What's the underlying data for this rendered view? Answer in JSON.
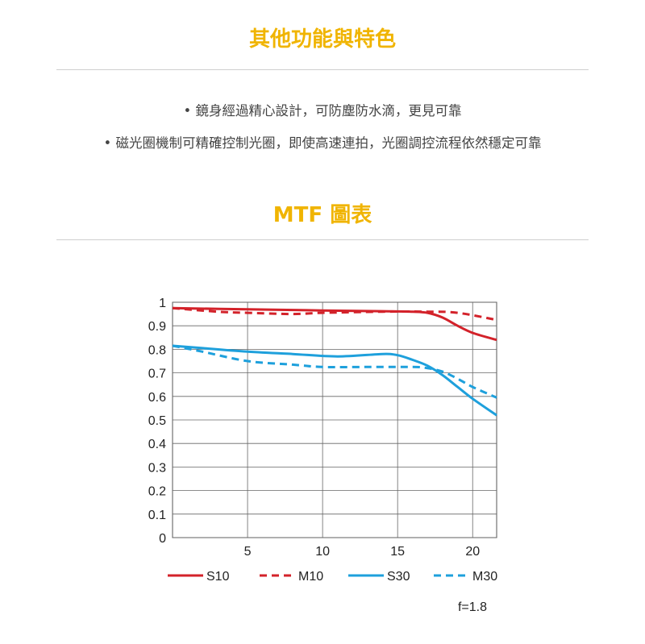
{
  "colors": {
    "accent": "#f0b400",
    "red": "#d3222a",
    "blue": "#1ea0dc"
  },
  "section1": {
    "title": "其他功能與特色",
    "bullets": [
      "鏡身經過精心設計，可防塵防水滴，更見可靠",
      "磁光圈機制可精確控制光圈，即使高速連拍，光圈調控流程依然穩定可靠"
    ],
    "bullet_symbol": "•"
  },
  "section2": {
    "title": "MTF 圖表"
  },
  "chart_data": {
    "type": "line",
    "title": "",
    "xlabel": "",
    "ylabel": "",
    "xlim": [
      0,
      21.6
    ],
    "ylim": [
      0,
      1
    ],
    "grid": true,
    "x_ticks": [
      5,
      10,
      15,
      20
    ],
    "y_ticks": [
      0,
      0.1,
      0.2,
      0.3,
      0.4,
      0.5,
      0.6,
      0.7,
      0.8,
      0.9,
      1
    ],
    "y_tick_labels": [
      "0",
      "0.1",
      "0.2",
      "0.3",
      "0.4",
      "0.5",
      "0.6",
      "0.7",
      "0.8",
      "0.9",
      "1"
    ],
    "legend_position": "bottom",
    "annotation": "f=1.8",
    "series": [
      {
        "name": "S10",
        "color": "#d3222a",
        "style": "solid",
        "x": [
          0,
          5,
          10,
          14,
          16,
          17,
          18,
          19,
          20,
          21.6
        ],
        "y": [
          0.975,
          0.97,
          0.965,
          0.962,
          0.96,
          0.955,
          0.935,
          0.9,
          0.87,
          0.84
        ]
      },
      {
        "name": "M10",
        "color": "#d3222a",
        "style": "dashed",
        "x": [
          0,
          3,
          5,
          8,
          10,
          14,
          17,
          19,
          21.6
        ],
        "y": [
          0.975,
          0.96,
          0.955,
          0.95,
          0.955,
          0.96,
          0.96,
          0.955,
          0.925
        ]
      },
      {
        "name": "S30",
        "color": "#1ea0dc",
        "style": "solid",
        "x": [
          0,
          2,
          5,
          8,
          11,
          14,
          15,
          16,
          17,
          18,
          19,
          20,
          21.6
        ],
        "y": [
          0.815,
          0.805,
          0.79,
          0.78,
          0.77,
          0.78,
          0.775,
          0.755,
          0.73,
          0.69,
          0.64,
          0.59,
          0.52
        ]
      },
      {
        "name": "M30",
        "color": "#1ea0dc",
        "style": "dashed",
        "x": [
          0,
          2,
          5,
          8,
          10,
          13,
          16,
          17,
          18,
          19,
          20,
          21.6
        ],
        "y": [
          0.815,
          0.79,
          0.75,
          0.735,
          0.725,
          0.725,
          0.725,
          0.72,
          0.705,
          0.675,
          0.64,
          0.595
        ]
      }
    ]
  }
}
